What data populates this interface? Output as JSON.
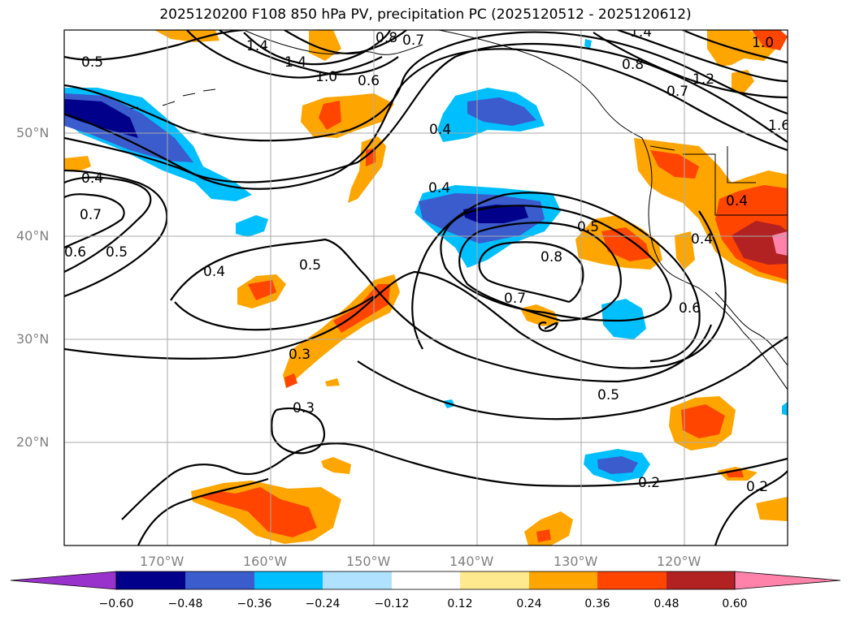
{
  "title": "2025120200 F108 850 hPa PV, precipitation PC (2025120512 - 2025120612)",
  "map": {
    "lon_range": [
      -180,
      -110
    ],
    "lat_range": [
      10,
      60
    ],
    "lat_ticks": [
      {
        "value": 20,
        "label": "20°N"
      },
      {
        "value": 30,
        "label": "30°N"
      },
      {
        "value": 40,
        "label": "40°N"
      },
      {
        "value": 50,
        "label": "50°N"
      }
    ],
    "lon_ticks": [
      {
        "value": -170,
        "label": "170°W"
      },
      {
        "value": -160,
        "label": "160°W"
      },
      {
        "value": -150,
        "label": "150°W"
      },
      {
        "value": -140,
        "label": "140°W"
      },
      {
        "value": -130,
        "label": "130°W"
      },
      {
        "value": -120,
        "label": "120°W"
      }
    ],
    "contour_labels": [
      "0.5",
      "1.4",
      "1.0",
      "0.8",
      "0.7",
      "0.6",
      "1.4",
      "0.8",
      "1.2",
      "0.7",
      "1.4",
      "1.6",
      "1.0",
      "0.4",
      "0.4",
      "0.7",
      "0.6",
      "0.5",
      "0.4",
      "0.5",
      "0.4",
      "0.5",
      "0.8",
      "0.7",
      "0.4",
      "0.6",
      "0.3",
      "0.3",
      "0.5",
      "0.2",
      "0.2",
      "0.4"
    ]
  },
  "colorbar": {
    "ticks": [
      "−0.60",
      "−0.48",
      "−0.36",
      "−0.24",
      "−0.12",
      "0.12",
      "0.24",
      "0.36",
      "0.48",
      "0.60"
    ],
    "colors": [
      "#9932cc",
      "#00008b",
      "#3a5ccc",
      "#00bfff",
      "#b0e2ff",
      "#ffffff",
      "#ffe98f",
      "#ffa500",
      "#ff4500",
      "#b22222",
      "#ff82ab"
    ]
  }
}
